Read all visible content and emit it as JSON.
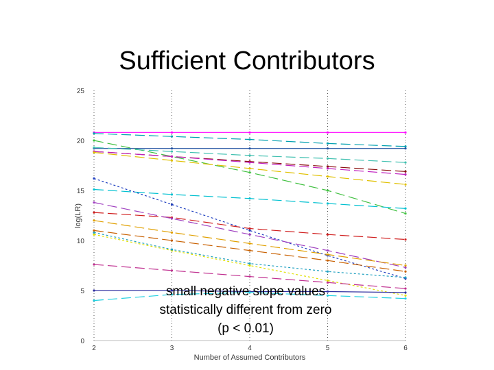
{
  "slide": {
    "title": "Sufficient Contributors"
  },
  "annotation": {
    "line1": "small negative slope values",
    "line2": "statistically different from zero",
    "line3": "(p < 0.01)"
  },
  "chart_data": {
    "type": "line",
    "title": "",
    "xlabel": "Number of Assumed Contributors",
    "ylabel": "log(LR)",
    "xlim": [
      2,
      6
    ],
    "ylim": [
      0,
      25
    ],
    "xticks": [
      2,
      3,
      4,
      5,
      6
    ],
    "yticks": [
      0,
      5,
      10,
      15,
      20,
      25
    ],
    "grid": "vertical dotted lines at each x tick",
    "x": [
      2,
      3,
      4,
      5,
      6
    ],
    "series": [
      {
        "name": "s1",
        "color": "#ff00ff",
        "dash": "solid",
        "values": [
          20.8,
          20.8,
          20.8,
          20.8,
          20.8
        ]
      },
      {
        "name": "s2",
        "color": "#00a0b0",
        "dash": "dashed",
        "values": [
          20.7,
          20.4,
          20.1,
          19.7,
          19.4
        ]
      },
      {
        "name": "s3",
        "color": "#2050a0",
        "dash": "solid",
        "values": [
          19.2,
          19.2,
          19.2,
          19.2,
          19.2
        ]
      },
      {
        "name": "s4",
        "color": "#40c040",
        "dash": "dashed",
        "values": [
          20.0,
          18.4,
          16.8,
          15.0,
          12.7
        ]
      },
      {
        "name": "s5",
        "color": "#40c0b0",
        "dash": "dashed",
        "values": [
          19.3,
          18.9,
          18.5,
          18.2,
          17.8
        ]
      },
      {
        "name": "s6",
        "color": "#8b1010",
        "dash": "dashed",
        "values": [
          18.9,
          18.4,
          17.9,
          17.4,
          16.9
        ]
      },
      {
        "name": "s7",
        "color": "#c020c0",
        "dash": "dashed",
        "values": [
          18.9,
          18.4,
          17.8,
          17.2,
          16.6
        ]
      },
      {
        "name": "s8",
        "color": "#e0c000",
        "dash": "dashed",
        "values": [
          18.8,
          18.0,
          17.2,
          16.4,
          15.6
        ]
      },
      {
        "name": "s9",
        "color": "#00c0d0",
        "dash": "dashed",
        "values": [
          15.1,
          14.6,
          14.2,
          13.7,
          13.2
        ]
      },
      {
        "name": "s10",
        "color": "#2040c0",
        "dash": "dotted",
        "values": [
          16.2,
          13.6,
          11.0,
          8.5,
          6.2
        ]
      },
      {
        "name": "s11",
        "color": "#d02020",
        "dash": "dashed",
        "values": [
          12.8,
          12.3,
          11.2,
          10.6,
          10.1
        ]
      },
      {
        "name": "s12",
        "color": "#a040c0",
        "dash": "dashed",
        "values": [
          13.8,
          12.2,
          10.6,
          9.0,
          7.3
        ]
      },
      {
        "name": "s13",
        "color": "#e0a000",
        "dash": "dashed",
        "values": [
          12.0,
          10.8,
          9.7,
          8.6,
          7.5
        ]
      },
      {
        "name": "s14",
        "color": "#c86000",
        "dash": "dashed",
        "values": [
          11.0,
          10.0,
          9.0,
          8.0,
          6.9
        ]
      },
      {
        "name": "s15",
        "color": "#e0e000",
        "dash": "dotted",
        "values": [
          10.6,
          9.0,
          7.5,
          6.0,
          4.5
        ]
      },
      {
        "name": "s16",
        "color": "#c03090",
        "dash": "dashed",
        "values": [
          7.6,
          7.0,
          6.4,
          5.8,
          5.2
        ]
      },
      {
        "name": "s17",
        "color": "#20a0c0",
        "dash": "dotted",
        "values": [
          10.8,
          9.1,
          7.7,
          6.9,
          6.3
        ]
      },
      {
        "name": "s18",
        "color": "#3030a0",
        "dash": "solid",
        "values": [
          5.0,
          5.0,
          4.9,
          4.9,
          4.8
        ]
      },
      {
        "name": "s19",
        "color": "#20d0e0",
        "dash": "dashed",
        "values": [
          4.0,
          4.6,
          4.8,
          4.5,
          4.2
        ]
      }
    ]
  }
}
